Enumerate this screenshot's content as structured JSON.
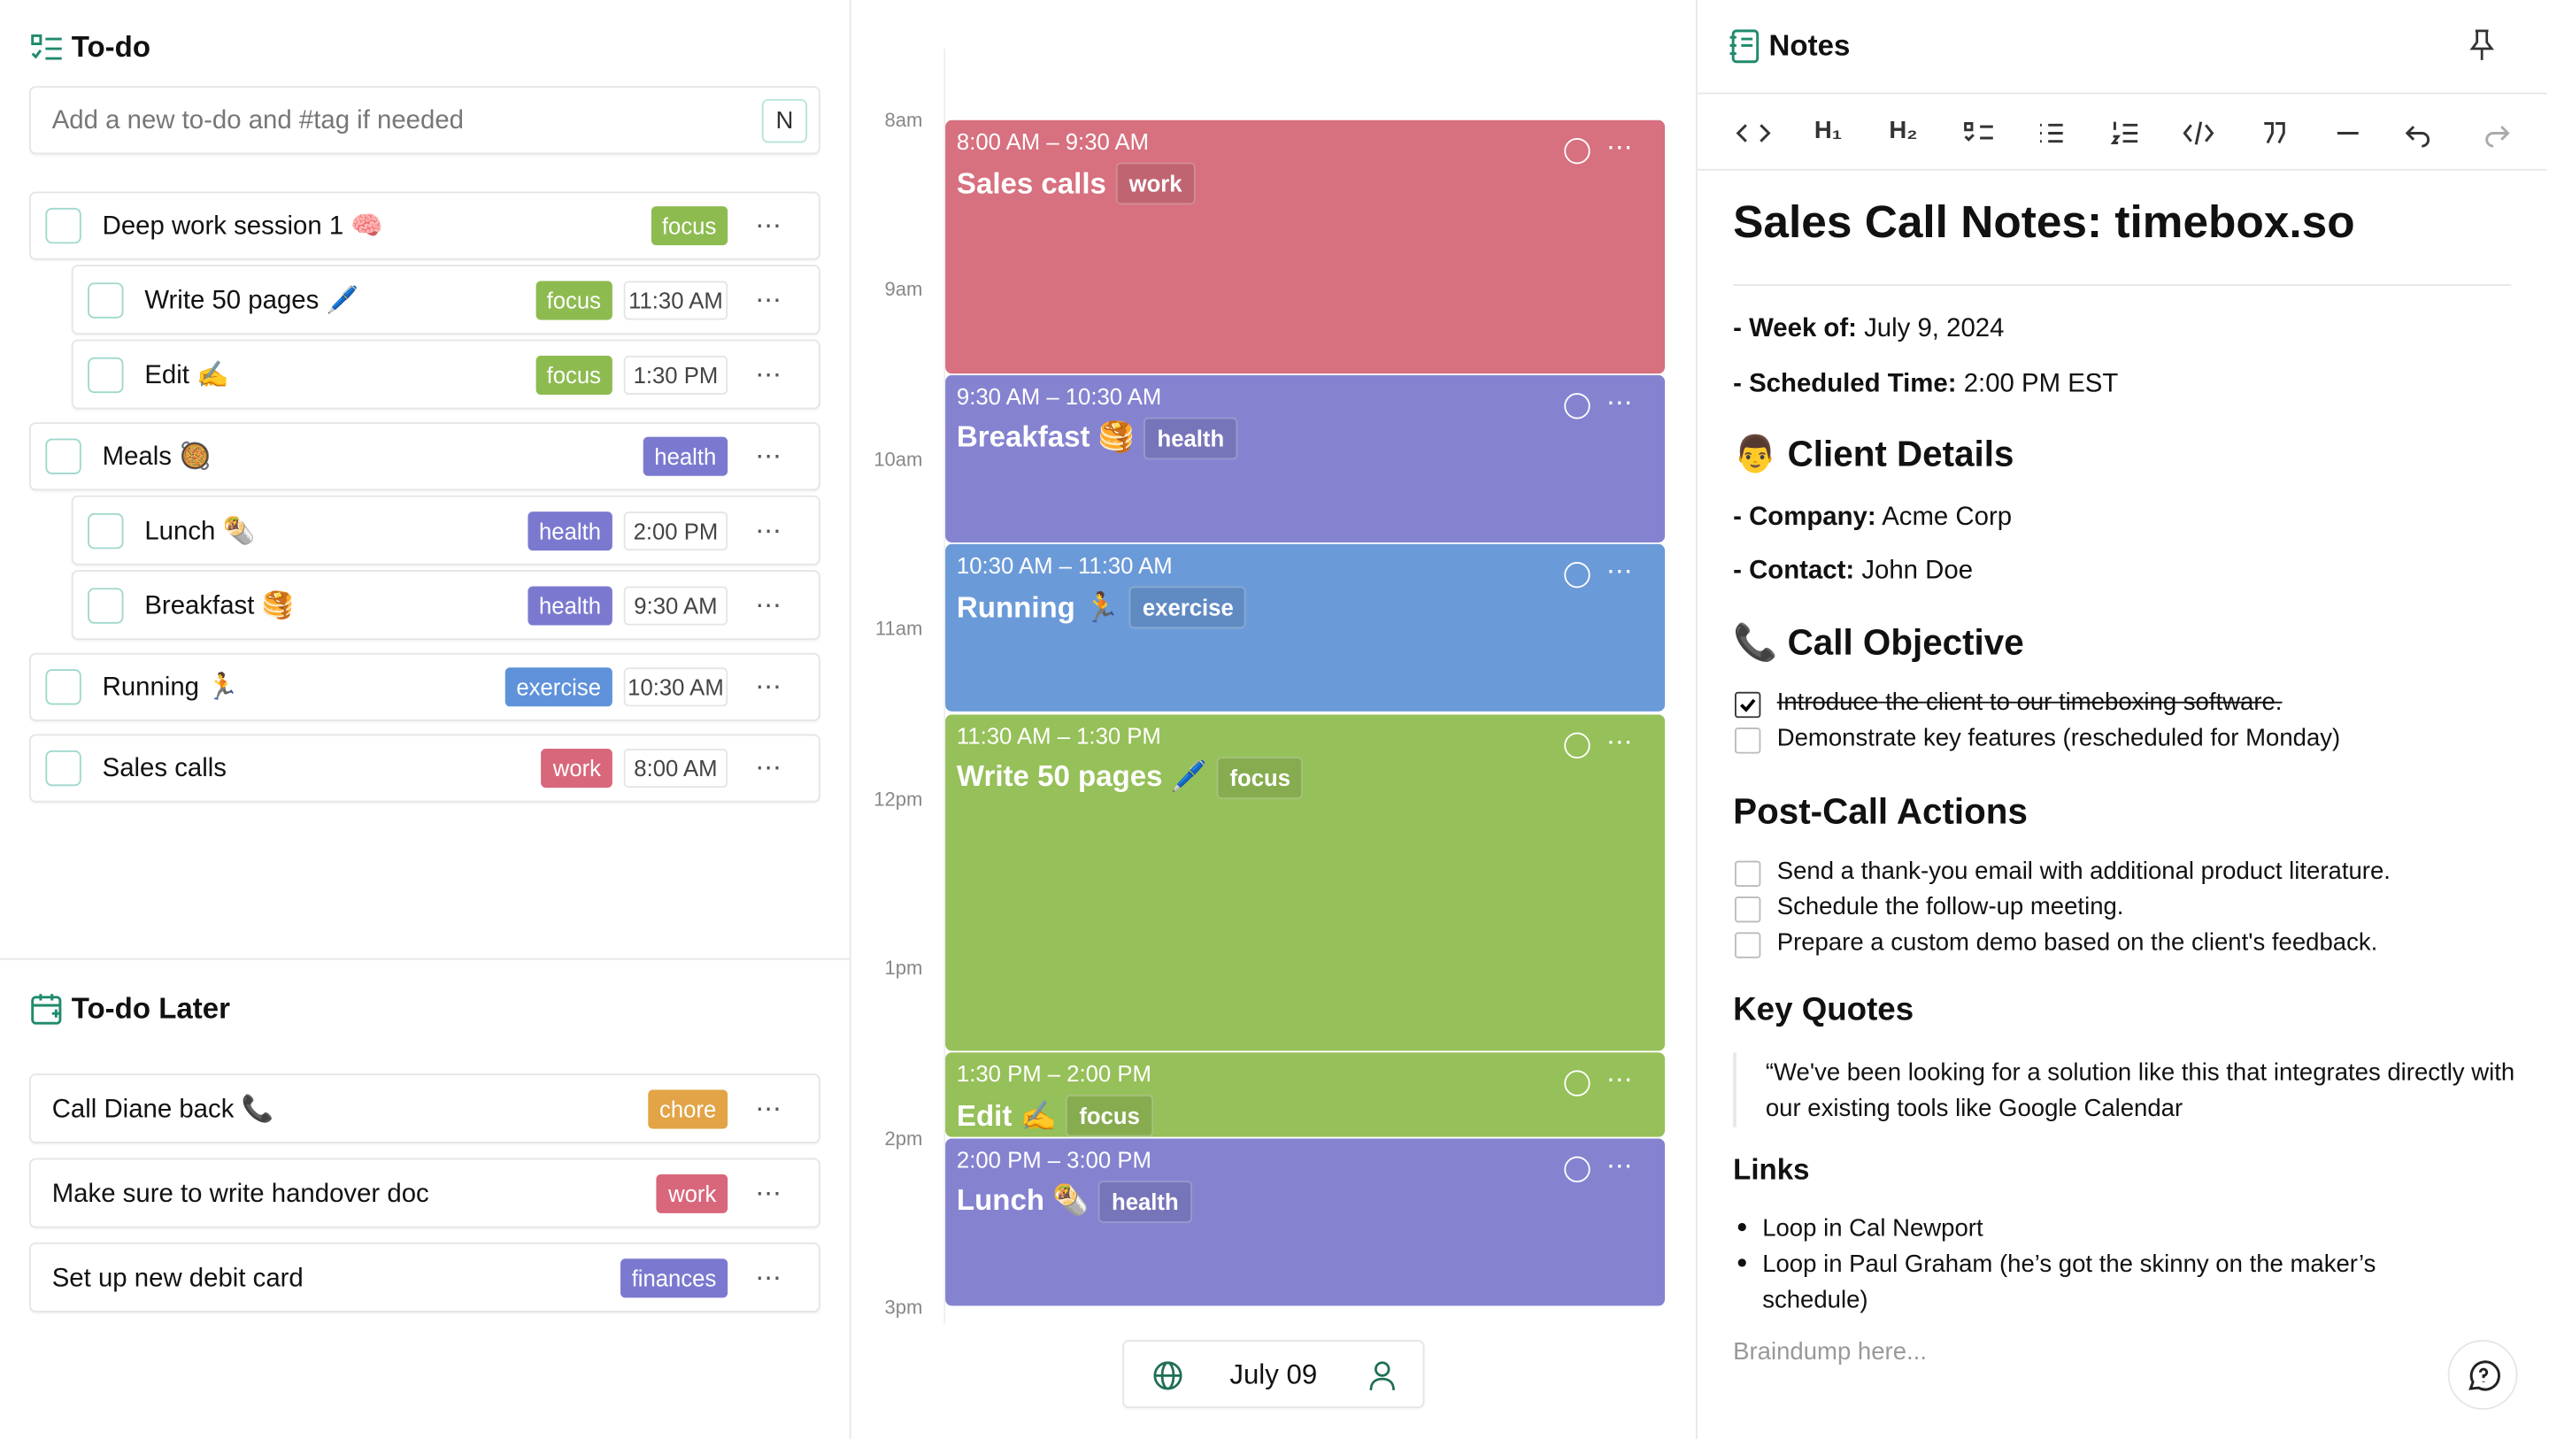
{
  "todo": {
    "title": "To-do",
    "placeholder": "Add a new to-do and #tag if needed",
    "shortcut": "N",
    "items": [
      {
        "text": "Deep work session 1 🧠",
        "tag": "focus",
        "color": "#8dbb50",
        "subtasks": [
          {
            "text": "Write 50 pages 🖊️",
            "tag": "focus",
            "color": "#8dbb50",
            "time": "11:30 AM"
          },
          {
            "text": "Edit ✍️",
            "tag": "focus",
            "color": "#8dbb50",
            "time": "1:30 PM"
          }
        ]
      },
      {
        "text": "Meals 🥘",
        "tag": "health",
        "color": "#7b79cf",
        "subtasks": [
          {
            "text": "Lunch 🌯",
            "tag": "health",
            "color": "#7b79cf",
            "time": "2:00 PM"
          },
          {
            "text": "Breakfast 🥞",
            "tag": "health",
            "color": "#7b79cf",
            "time": "9:30 AM"
          }
        ]
      },
      {
        "text": "Running 🏃",
        "tag": "exercise",
        "color": "#5f92da",
        "time": "10:30 AM"
      },
      {
        "text": "Sales calls",
        "tag": "work",
        "color": "#d8677b",
        "time": "8:00 AM"
      }
    ]
  },
  "todo_later": {
    "title": "To-do Later",
    "items": [
      {
        "text": "Call Diane back 📞",
        "tag": "chore",
        "color": "#e2a446"
      },
      {
        "text": "Make sure to write handover doc",
        "tag": "work",
        "color": "#d8677b"
      },
      {
        "text": "Set up new debit card",
        "tag": "finances",
        "color": "#7b79cf"
      }
    ]
  },
  "calendar": {
    "hours": [
      "8am",
      "9am",
      "10am",
      "11am",
      "12pm",
      "1pm",
      "2pm",
      "3pm"
    ],
    "events": [
      {
        "time": "8:00 AM – 9:30 AM",
        "title": "Sales calls",
        "tag": "work",
        "color": "#d7707f"
      },
      {
        "time": "9:30 AM – 10:30 AM",
        "title": "Breakfast 🥞",
        "tag": "health",
        "color": "#8583d0"
      },
      {
        "time": "10:30 AM – 11:30 AM",
        "title": "Running 🏃",
        "tag": "exercise",
        "color": "#6b9ad8"
      },
      {
        "time": "11:30 AM – 1:30 PM",
        "title": "Write 50 pages 🖊️",
        "tag": "focus",
        "color": "#96c059"
      },
      {
        "time": "1:30 PM – 2:00 PM",
        "title": "Edit ✍️",
        "tag": "focus",
        "color": "#96c059"
      },
      {
        "time": "2:00 PM – 3:00 PM",
        "title": "Lunch 🌯",
        "tag": "health",
        "color": "#8583d0"
      }
    ],
    "date": "July 09"
  },
  "notes": {
    "title": "Notes",
    "toolbar": [
      "H₁",
      "H₂"
    ],
    "doc_title": "Sales Call Notes: timebox.so",
    "meta": [
      {
        "label": "- Week of:",
        "value": "July 9, 2024"
      },
      {
        "label": "- Scheduled Time:",
        "value": "2:00 PM EST"
      }
    ],
    "client": {
      "heading": "👨 Client Details",
      "items": [
        {
          "label": "- Company:",
          "value": "Acme Corp"
        },
        {
          "label": "- Contact:",
          "value": "John Doe"
        }
      ]
    },
    "objective": {
      "heading": "📞 Call Objective",
      "tasks": [
        {
          "text": "Introduce the client to our timeboxing software.",
          "checked": true
        },
        {
          "text": "Demonstrate key features  (rescheduled for Monday)",
          "checked": false
        }
      ]
    },
    "actions": {
      "heading": "Post-Call Actions",
      "tasks": [
        {
          "text": "Send a thank-you email with additional product literature.",
          "checked": false
        },
        {
          "text": "Schedule the follow-up meeting.",
          "checked": false
        },
        {
          "text": "Prepare a custom demo based on the client's feedback.",
          "checked": false
        }
      ]
    },
    "quotes": {
      "heading": "Key Quotes",
      "quote": "“We've been looking for a solution like this that integrates directly with our existing tools like Google Calendar"
    },
    "links": {
      "heading": "Links",
      "items": [
        "Loop in Cal Newport",
        "Loop in Paul Graham (he’s got the skinny on the maker’s schedule)"
      ]
    },
    "placeholder": "Braindump here..."
  }
}
